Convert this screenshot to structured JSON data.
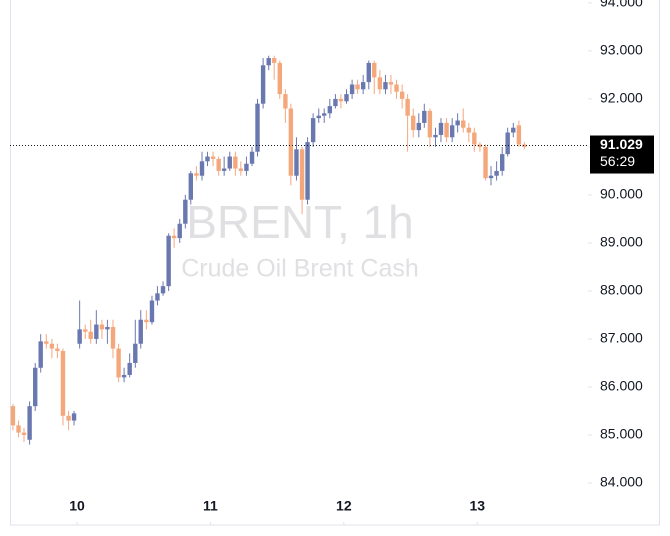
{
  "chart_data": {
    "type": "candlestick",
    "title": "BRENT, 1h",
    "subtitle": "Crude Oil Brent Cash",
    "x": [
      9.52,
      9.562,
      9.603,
      9.645,
      9.687,
      9.728,
      9.77,
      9.812,
      9.853,
      9.895,
      9.937,
      9.978,
      10.02,
      10.062,
      10.103,
      10.145,
      10.187,
      10.228,
      10.27,
      10.312,
      10.353,
      10.395,
      10.437,
      10.478,
      10.52,
      10.562,
      10.603,
      10.645,
      10.687,
      10.728,
      10.77,
      10.812,
      10.853,
      10.895,
      10.937,
      10.978,
      11.02,
      11.062,
      11.103,
      11.145,
      11.187,
      11.228,
      11.27,
      11.312,
      11.353,
      11.395,
      11.437,
      11.478,
      11.52,
      11.562,
      11.603,
      11.645,
      11.687,
      11.728,
      11.77,
      11.812,
      11.853,
      11.895,
      11.937,
      11.978,
      12.02,
      12.062,
      12.103,
      12.145,
      12.187,
      12.228,
      12.27,
      12.312,
      12.353,
      12.395,
      12.437,
      12.478,
      12.52,
      12.562,
      12.603,
      12.645,
      12.687,
      12.728,
      12.77,
      12.812,
      12.853,
      12.895,
      12.937,
      12.978,
      13.02,
      13.062,
      13.103,
      13.145,
      13.187,
      13.228,
      13.27,
      13.312,
      13.353
    ],
    "open": [
      85.6,
      85.2,
      85.05,
      84.9,
      85.6,
      86.4,
      86.95,
      86.9,
      86.8,
      86.75,
      85.4,
      85.3,
      86.9,
      87.2,
      87.15,
      87.0,
      87.3,
      87.2,
      87.25,
      86.8,
      86.2,
      86.25,
      86.5,
      86.9,
      87.4,
      87.35,
      87.8,
      87.95,
      88.1,
      89.15,
      89.1,
      89.4,
      89.9,
      90.45,
      90.4,
      90.7,
      90.8,
      90.75,
      90.5,
      90.55,
      90.8,
      90.55,
      90.5,
      90.65,
      90.9,
      91.9,
      92.7,
      92.85,
      92.75,
      92.1,
      91.8,
      90.4,
      90.95,
      89.9,
      91.1,
      91.6,
      91.65,
      91.7,
      91.85,
      92.0,
      91.95,
      92.1,
      92.3,
      92.2,
      92.35,
      92.75,
      92.45,
      92.2,
      92.35,
      92.3,
      92.15,
      92.0,
      91.65,
      91.35,
      91.5,
      91.75,
      91.2,
      91.25,
      91.5,
      91.2,
      91.45,
      91.55,
      91.4,
      91.3,
      91.05,
      91.0,
      90.35,
      90.4,
      90.5,
      90.85,
      91.3,
      91.45,
      91.05
    ],
    "high": [
      85.65,
      85.3,
      85.15,
      85.7,
      86.5,
      87.1,
      87.1,
      87.0,
      86.9,
      86.8,
      85.5,
      85.5,
      87.8,
      87.3,
      87.4,
      87.6,
      87.4,
      87.4,
      87.4,
      86.9,
      86.4,
      86.7,
      87.4,
      87.6,
      87.6,
      87.9,
      88.1,
      88.2,
      89.2,
      89.3,
      89.5,
      90.0,
      90.5,
      90.6,
      90.9,
      90.9,
      90.9,
      90.8,
      90.8,
      90.9,
      90.9,
      90.7,
      90.8,
      91.0,
      92.0,
      92.85,
      92.9,
      92.9,
      92.8,
      92.2,
      91.9,
      91.2,
      91.0,
      91.2,
      91.7,
      91.8,
      91.8,
      92.0,
      92.1,
      92.1,
      92.2,
      92.4,
      92.4,
      92.5,
      92.8,
      92.8,
      92.6,
      92.5,
      92.5,
      92.4,
      92.3,
      92.1,
      91.8,
      91.7,
      91.9,
      91.8,
      91.4,
      91.6,
      91.6,
      91.6,
      91.7,
      91.8,
      91.5,
      91.4,
      91.1,
      91.05,
      90.6,
      90.7,
      91.0,
      91.4,
      91.5,
      91.55,
      91.1
    ],
    "low": [
      85.1,
      84.95,
      84.85,
      84.8,
      85.5,
      86.3,
      86.8,
      86.6,
      86.6,
      85.2,
      85.1,
      85.2,
      86.8,
      87.0,
      86.9,
      86.9,
      87.0,
      86.9,
      86.6,
      86.1,
      86.1,
      86.2,
      86.4,
      86.8,
      87.2,
      87.3,
      87.7,
      87.9,
      88.0,
      88.9,
      89.0,
      89.3,
      89.8,
      90.3,
      90.3,
      90.6,
      90.6,
      90.4,
      90.4,
      90.5,
      90.4,
      90.4,
      90.4,
      90.6,
      90.8,
      91.8,
      92.6,
      92.4,
      92.0,
      91.5,
      90.2,
      90.3,
      89.6,
      89.8,
      91.0,
      91.5,
      91.5,
      91.6,
      91.8,
      91.8,
      91.9,
      92.0,
      92.1,
      92.1,
      92.2,
      92.1,
      92.1,
      92.1,
      92.1,
      92.0,
      91.8,
      90.9,
      91.2,
      91.2,
      91.4,
      91.0,
      91.0,
      91.1,
      91.1,
      91.1,
      91.3,
      91.3,
      91.1,
      90.9,
      90.9,
      90.3,
      90.2,
      90.3,
      90.4,
      90.8,
      91.2,
      91.0,
      90.95
    ],
    "close": [
      85.2,
      85.05,
      85.0,
      85.6,
      86.4,
      86.95,
      86.9,
      86.8,
      86.75,
      85.4,
      85.3,
      85.45,
      87.2,
      87.15,
      87.0,
      87.3,
      87.2,
      87.25,
      86.8,
      86.2,
      86.25,
      86.5,
      86.9,
      87.4,
      87.35,
      87.8,
      87.95,
      88.1,
      89.15,
      89.1,
      89.4,
      89.9,
      90.45,
      90.4,
      90.7,
      90.8,
      90.75,
      90.5,
      90.55,
      90.8,
      90.55,
      90.5,
      90.65,
      90.9,
      91.9,
      92.7,
      92.85,
      92.75,
      92.1,
      91.8,
      90.4,
      90.95,
      89.9,
      91.1,
      91.6,
      91.65,
      91.7,
      91.85,
      92.0,
      91.95,
      92.1,
      92.3,
      92.2,
      92.35,
      92.75,
      92.45,
      92.2,
      92.35,
      92.3,
      92.15,
      92.0,
      91.65,
      91.35,
      91.5,
      91.75,
      91.2,
      91.25,
      91.5,
      91.2,
      91.45,
      91.55,
      91.4,
      91.3,
      91.05,
      91.0,
      90.35,
      90.4,
      90.5,
      90.85,
      91.3,
      91.4,
      91.05,
      91.0
    ],
    "up_color": "#6a78b0",
    "down_color": "#f5a77c",
    "xlim": [
      9.498,
      13.83
    ],
    "xticks": [
      10,
      11,
      12,
      13
    ],
    "ylim": [
      83.125,
      94.06
    ],
    "yticks": [
      {
        "value": 84,
        "label": "84.000"
      },
      {
        "value": 85,
        "label": "85.000"
      },
      {
        "value": 86,
        "label": "86.000"
      },
      {
        "value": 87,
        "label": "87.000"
      },
      {
        "value": 88,
        "label": "88.000"
      },
      {
        "value": 89,
        "label": "89.000"
      },
      {
        "value": 90,
        "label": "90.000"
      },
      {
        "value": 91,
        "label": "91.000"
      },
      {
        "value": 92,
        "label": "92.000"
      },
      {
        "value": 93,
        "label": "93.000"
      },
      {
        "value": 94,
        "label": "94.000"
      }
    ],
    "last_price": 91.029,
    "countdown": "56:29"
  }
}
